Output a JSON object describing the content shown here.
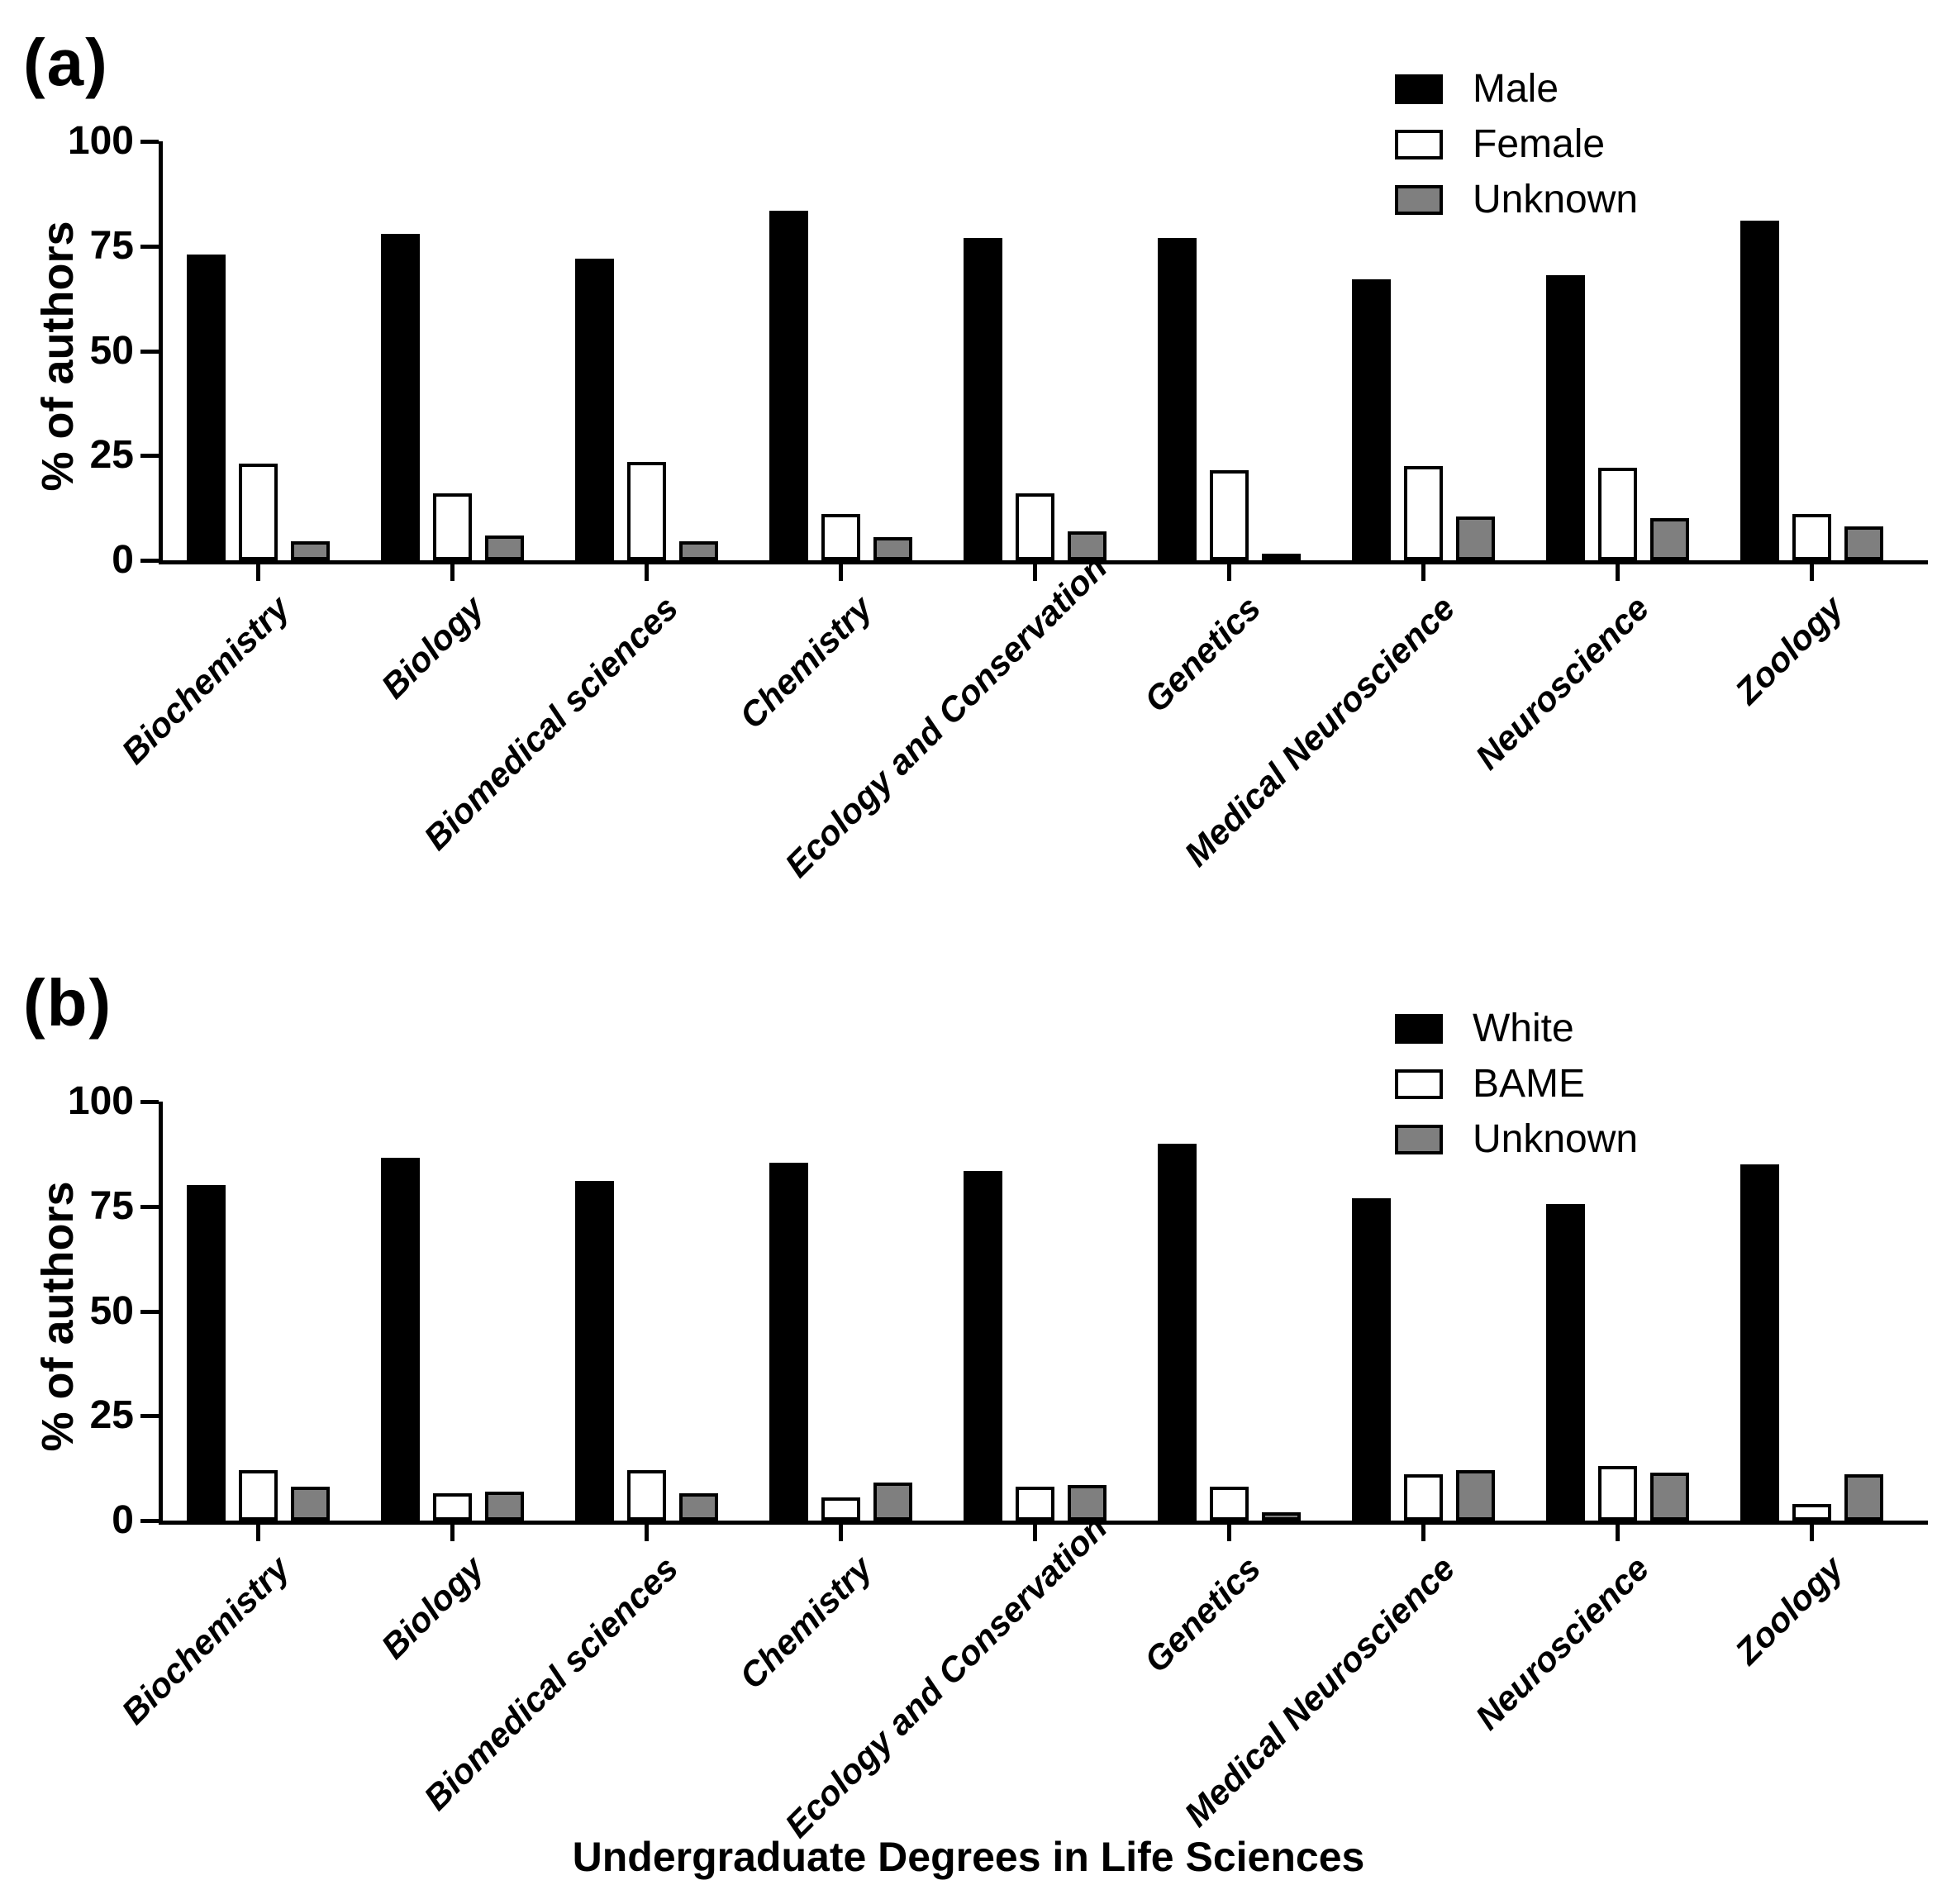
{
  "page": {
    "xlabel": "Undergraduate Degrees in Life Sciences"
  },
  "panels": [
    {
      "label": "(a)",
      "ylabel": "% of authors",
      "yticks": [
        0,
        25,
        50,
        75,
        100
      ],
      "legend": [
        {
          "name": "Male",
          "color": "#000000"
        },
        {
          "name": "Female",
          "color": "#ffffff"
        },
        {
          "name": "Unknown",
          "color": "#7f7f7f"
        }
      ]
    },
    {
      "label": "(b)",
      "ylabel": "% of authors",
      "yticks": [
        0,
        25,
        50,
        75,
        100
      ],
      "legend": [
        {
          "name": "White",
          "color": "#000000"
        },
        {
          "name": "BAME",
          "color": "#ffffff"
        },
        {
          "name": "Unknown",
          "color": "#7f7f7f"
        }
      ]
    }
  ],
  "chart_data": [
    {
      "type": "bar",
      "title": "(a)",
      "categories": [
        "Biochemistry",
        "Biology",
        "Biomedical sciences",
        "Chemistry",
        "Ecology and Conservation",
        "Genetics",
        "Medical Neuroscience",
        "Neuroscience",
        "Zoology"
      ],
      "series": [
        {
          "name": "Male",
          "values": [
            73,
            78,
            72,
            83.5,
            77,
            77,
            67,
            68,
            81
          ]
        },
        {
          "name": "Female",
          "values": [
            23,
            16,
            23.5,
            11,
            16,
            21.5,
            22.5,
            22,
            11
          ]
        },
        {
          "name": "Unknown",
          "values": [
            4.5,
            6,
            4.5,
            5.5,
            7,
            1.5,
            10.5,
            10,
            8
          ]
        }
      ],
      "xlabel": "",
      "ylabel": "% of authors",
      "ylim": [
        0,
        100
      ],
      "grid": false,
      "legend_position": "top-right"
    },
    {
      "type": "bar",
      "title": "(b)",
      "categories": [
        "Biochemistry",
        "Biology",
        "Biomedical sciences",
        "Chemistry",
        "Ecology and Conservation",
        "Genetics",
        "Medical Neuroscience",
        "Neuroscience",
        "Zoology"
      ],
      "series": [
        {
          "name": "White",
          "values": [
            80,
            86.5,
            81,
            85.5,
            83.5,
            90,
            77,
            75.5,
            85
          ]
        },
        {
          "name": "BAME",
          "values": [
            12,
            6.5,
            12,
            5.5,
            8,
            8,
            11,
            13,
            4
          ]
        },
        {
          "name": "Unknown",
          "values": [
            8,
            7,
            6.5,
            9,
            8.5,
            2,
            12,
            11.5,
            11
          ]
        }
      ],
      "xlabel": "Undergraduate Degrees in Life Sciences",
      "ylabel": "% of authors",
      "ylim": [
        0,
        100
      ],
      "grid": false,
      "legend_position": "top-right"
    }
  ]
}
